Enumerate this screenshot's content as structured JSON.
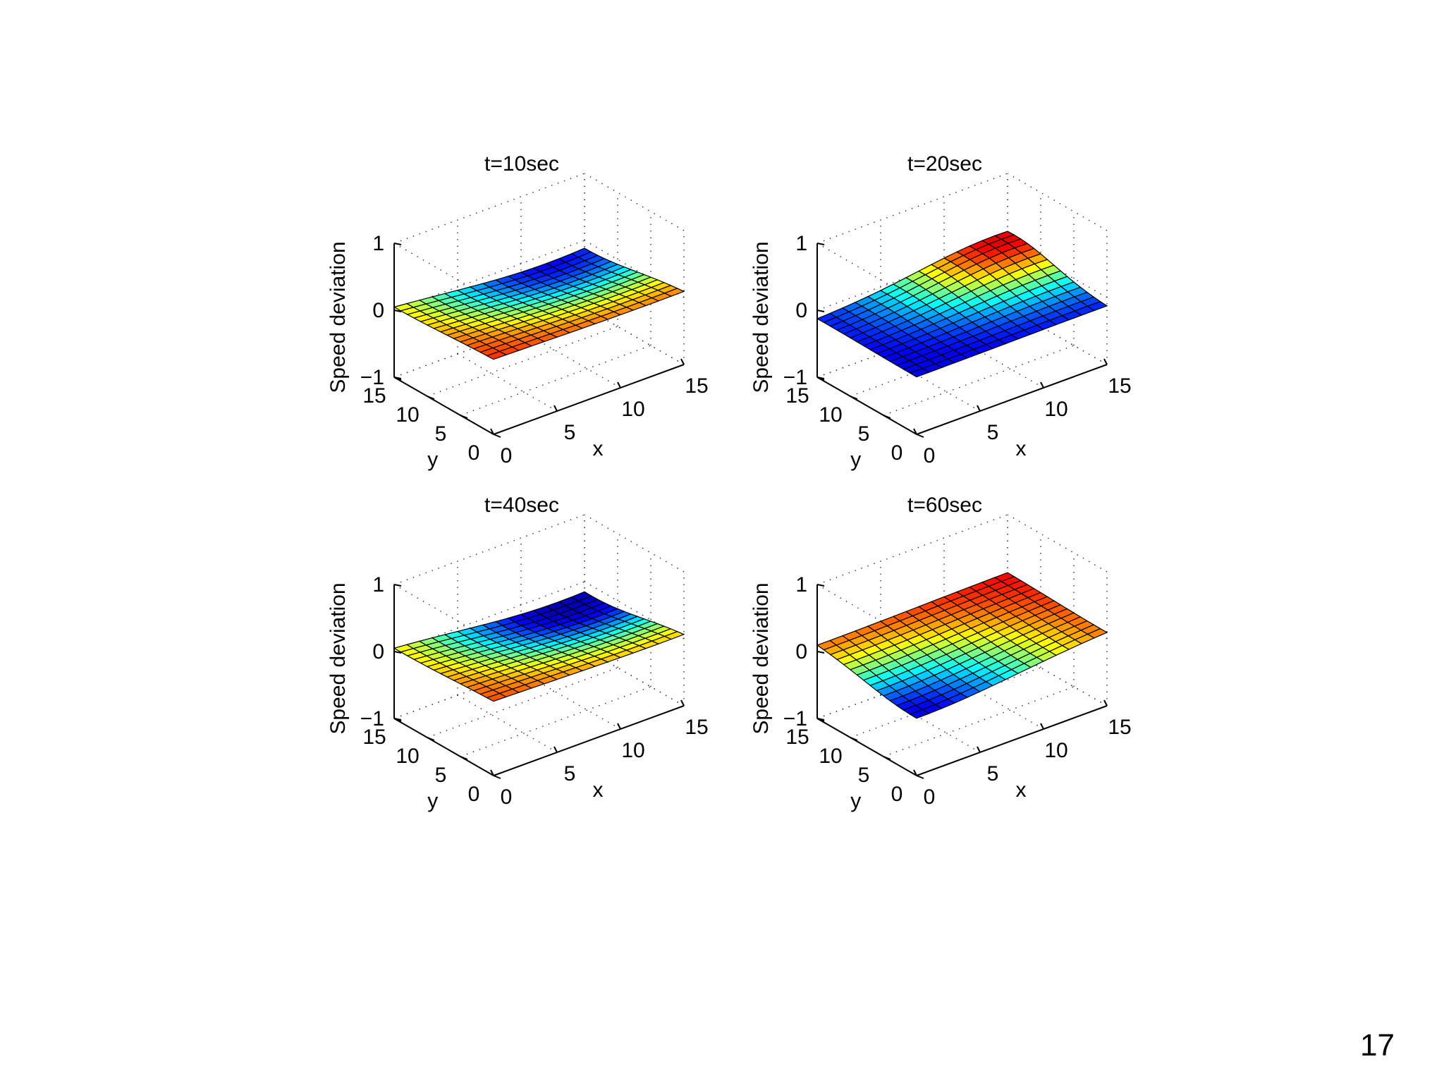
{
  "slide_number": "17",
  "chart_data": [
    {
      "type": "surface",
      "title": "t=10sec",
      "zlabel": "Speed deviation",
      "xlabel": "x",
      "ylabel": "y",
      "zlim": [
        -1,
        1
      ],
      "xlim": [
        0,
        15
      ],
      "ylim": [
        0,
        15
      ],
      "z_ticks": [
        "1",
        "0",
        "−1"
      ],
      "x_ticks": [
        "0",
        "5",
        "10",
        "15"
      ],
      "y_ticks": [
        "15",
        "10",
        "5",
        "0"
      ],
      "grid": true,
      "colormap": "jet",
      "field": {
        "base": 0.75,
        "cx": 12,
        "cy": 15,
        "amp": -1.5,
        "sigma": 8
      }
    },
    {
      "type": "surface",
      "title": "t=20sec",
      "zlabel": "Speed deviation",
      "xlabel": "x",
      "ylabel": "y",
      "zlim": [
        -1,
        1
      ],
      "xlim": [
        0,
        15
      ],
      "ylim": [
        0,
        15
      ],
      "z_ticks": [
        "1",
        "0",
        "−1"
      ],
      "x_ticks": [
        "0",
        "5",
        "10",
        "15"
      ],
      "y_ticks": [
        "15",
        "10",
        "5",
        "0"
      ],
      "grid": true,
      "colormap": "jet",
      "field": {
        "base": -0.8,
        "cx": 14,
        "cy": 14,
        "amp": 1.6,
        "sigma": 6
      }
    },
    {
      "type": "surface",
      "title": "t=40sec",
      "zlabel": "Speed deviation",
      "xlabel": "x",
      "ylabel": "y",
      "zlim": [
        -1,
        1
      ],
      "xlim": [
        0,
        15
      ],
      "ylim": [
        0,
        15
      ],
      "z_ticks": [
        "1",
        "0",
        "−1"
      ],
      "x_ticks": [
        "0",
        "5",
        "10",
        "15"
      ],
      "y_ticks": [
        "15",
        "10",
        "5",
        "0"
      ],
      "grid": true,
      "colormap": "jet",
      "field": {
        "base": 0.7,
        "cx": 13,
        "cy": 14,
        "amp": -1.6,
        "sigma": 8
      }
    },
    {
      "type": "surface",
      "title": "t=60sec",
      "zlabel": "Speed deviation",
      "xlabel": "x",
      "ylabel": "y",
      "zlim": [
        -1,
        1
      ],
      "xlim": [
        0,
        15
      ],
      "ylim": [
        0,
        15
      ],
      "z_ticks": [
        "1",
        "0",
        "−1"
      ],
      "x_ticks": [
        "0",
        "5",
        "10",
        "15"
      ],
      "y_ticks": [
        "15",
        "10",
        "5",
        "0"
      ],
      "grid": true,
      "colormap": "jet",
      "field": {
        "base": 0.8,
        "cx": 0,
        "cy": 0,
        "amp": -1.6,
        "sigma": 8
      }
    }
  ]
}
